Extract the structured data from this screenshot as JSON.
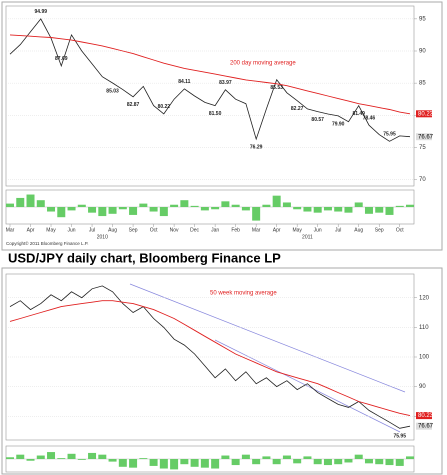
{
  "caption": "USD/JPY daily chart, Bloomberg Finance LP",
  "copyright": "Copyright© 2011 Bloomberg Finance L.P.",
  "chart_data": [
    {
      "type": "line",
      "grid": true,
      "x": [
        0,
        1,
        2,
        3,
        4,
        5,
        6,
        7,
        8,
        9,
        10,
        11,
        12,
        13,
        14,
        15,
        16,
        17,
        18,
        19,
        20,
        21,
        22,
        23,
        24,
        25,
        26,
        27,
        28,
        29,
        30,
        31,
        32,
        33,
        34,
        35,
        36,
        37,
        38,
        39
      ],
      "xlim": [
        0,
        39
      ],
      "xticks": [
        {
          "value": 0,
          "label": "Mar"
        },
        {
          "value": 2,
          "label": "Apr"
        },
        {
          "value": 4,
          "label": "May"
        },
        {
          "value": 6,
          "label": "Jun"
        },
        {
          "value": 8,
          "label": "Jul"
        },
        {
          "value": 10,
          "label": "Aug"
        },
        {
          "value": 12,
          "label": "Sep"
        },
        {
          "value": 14,
          "label": "Oct"
        },
        {
          "value": 16,
          "label": "Nov"
        },
        {
          "value": 18,
          "label": "Dec"
        },
        {
          "value": 20,
          "label": "Jan"
        },
        {
          "value": 22,
          "label": "Feb"
        },
        {
          "value": 24,
          "label": "Mar"
        },
        {
          "value": 26,
          "label": "Apr"
        },
        {
          "value": 28,
          "label": "May"
        },
        {
          "value": 30,
          "label": "Jun"
        },
        {
          "value": 32,
          "label": "Jul"
        },
        {
          "value": 34,
          "label": "Aug"
        },
        {
          "value": 36,
          "label": "Sep"
        },
        {
          "value": 38,
          "label": "Oct"
        }
      ],
      "year_ticks": [
        {
          "value": 9,
          "label": "2010"
        },
        {
          "value": 29,
          "label": "2011"
        }
      ],
      "ylim": [
        69,
        97
      ],
      "yticks": [
        70,
        75,
        80,
        85,
        90,
        95
      ],
      "series": [
        {
          "name": "USD/JPY",
          "color": "#222222",
          "values": [
            89.5,
            91,
            93,
            94.99,
            92,
            87.69,
            92.5,
            90,
            88,
            86,
            85.03,
            84,
            82.87,
            84.5,
            81.5,
            80.22,
            82.5,
            84.11,
            83,
            82,
            81.5,
            83.97,
            82.5,
            81.8,
            76.29,
            81,
            85.53,
            83.5,
            82.27,
            81,
            80.57,
            80.2,
            79.9,
            79,
            81.49,
            78.46,
            77,
            75.95,
            76.8,
            76.67
          ],
          "value_labels": [
            null,
            null,
            null,
            "94.99",
            null,
            "87.69",
            null,
            null,
            null,
            null,
            "85.03",
            null,
            "82.87",
            null,
            null,
            "80.22",
            null,
            "84.11",
            null,
            null,
            "81.50",
            "83.97",
            null,
            null,
            "76.29",
            null,
            "85.53",
            null,
            "82.27",
            null,
            "80.57",
            null,
            "79.90",
            null,
            "81.49",
            "78.46",
            null,
            "75.95",
            null,
            "76.67"
          ]
        },
        {
          "name": "200 day moving average",
          "color": "#e02020",
          "values": [
            92.5,
            92.4,
            92.3,
            92.2,
            92.1,
            91.9,
            91.7,
            91.4,
            91.1,
            90.8,
            90.4,
            90.0,
            89.6,
            89.1,
            88.6,
            88.1,
            87.7,
            87.3,
            87.0,
            86.7,
            86.4,
            86.1,
            85.8,
            85.5,
            85.3,
            85.1,
            84.9,
            84.6,
            84.2,
            83.8,
            83.4,
            83.0,
            82.6,
            82.2,
            81.8,
            81.5,
            81.2,
            80.9,
            80.5,
            80.23
          ],
          "value_labels": [
            null,
            null,
            null,
            null,
            null,
            null,
            null,
            null,
            null,
            null,
            null,
            null,
            null,
            null,
            null,
            null,
            null,
            null,
            null,
            null,
            null,
            null,
            null,
            null,
            null,
            null,
            null,
            null,
            null,
            null,
            null,
            null,
            null,
            null,
            null,
            null,
            null,
            null,
            null,
            "80.23"
          ]
        }
      ]
    },
    {
      "type": "bar",
      "color": "#66cc66",
      "ylim": [
        -1.5,
        1.5
      ],
      "x": [
        0,
        1,
        2,
        3,
        4,
        5,
        6,
        7,
        8,
        9,
        10,
        11,
        12,
        13,
        14,
        15,
        16,
        17,
        18,
        19,
        20,
        21,
        22,
        23,
        24,
        25,
        26,
        27,
        28,
        29,
        30,
        31,
        32,
        33,
        34,
        35,
        36,
        37,
        38,
        39
      ],
      "xlim": [
        0,
        39
      ],
      "values": [
        0.3,
        0.8,
        1.1,
        0.6,
        -0.4,
        -0.9,
        -0.3,
        0.2,
        -0.5,
        -0.8,
        -0.6,
        -0.2,
        -0.7,
        0.3,
        -0.4,
        -0.8,
        0.2,
        0.6,
        0.1,
        -0.3,
        -0.2,
        0.5,
        0.2,
        -0.3,
        -1.2,
        0.2,
        1.0,
        0.4,
        -0.2,
        -0.4,
        -0.5,
        -0.3,
        -0.4,
        -0.5,
        0.4,
        -0.6,
        -0.5,
        -0.7,
        0.1,
        0.2
      ]
    },
    {
      "type": "line",
      "grid": true,
      "x": [
        0,
        1,
        2,
        3,
        4,
        5,
        6,
        7,
        8,
        9,
        10,
        11,
        12,
        13,
        14,
        15,
        16,
        17,
        18,
        19,
        20,
        21,
        22,
        23,
        24,
        25,
        26,
        27,
        28,
        29,
        30,
        31,
        32,
        33,
        34,
        35,
        36,
        37,
        38,
        39
      ],
      "xlim": [
        0,
        39
      ],
      "ylim": [
        72,
        128
      ],
      "yticks": [
        80,
        90,
        100,
        110,
        120
      ],
      "series": [
        {
          "name": "USD/JPY",
          "color": "#222222",
          "values": [
            117,
            119,
            116,
            118,
            121,
            119,
            122,
            120,
            123,
            124,
            122,
            118,
            115,
            117,
            113,
            110,
            106,
            104,
            101,
            97,
            93,
            96,
            92,
            95,
            91,
            93,
            90,
            92,
            89,
            91,
            88,
            86,
            84,
            83,
            85,
            82,
            80,
            78,
            75.95,
            76.67
          ],
          "value_labels": [
            null,
            null,
            null,
            null,
            null,
            null,
            null,
            null,
            null,
            null,
            null,
            null,
            null,
            null,
            null,
            null,
            null,
            null,
            null,
            null,
            null,
            null,
            null,
            null,
            null,
            null,
            null,
            null,
            null,
            null,
            null,
            null,
            null,
            null,
            null,
            null,
            null,
            null,
            "75.95",
            "76.67"
          ]
        },
        {
          "name": "50 week moving average",
          "color": "#e02020",
          "values": [
            112,
            113,
            114,
            115,
            116,
            117,
            117.5,
            118,
            118.5,
            119,
            119,
            118.5,
            118,
            117,
            116,
            114.5,
            113,
            111,
            109,
            107,
            105,
            103,
            101,
            99.5,
            98,
            96.5,
            95,
            94,
            93,
            92,
            91,
            89.5,
            88,
            86.5,
            85,
            84,
            83,
            82,
            81,
            80.23
          ],
          "value_labels": [
            null,
            null,
            null,
            null,
            null,
            null,
            null,
            null,
            null,
            null,
            null,
            null,
            null,
            null,
            null,
            null,
            null,
            null,
            null,
            null,
            null,
            null,
            null,
            null,
            null,
            null,
            null,
            null,
            null,
            null,
            null,
            null,
            null,
            null,
            null,
            null,
            null,
            null,
            null,
            "80.23"
          ]
        }
      ]
    },
    {
      "type": "bar",
      "color": "#66cc66",
      "ylim": [
        -1.5,
        1.5
      ],
      "x": [
        0,
        1,
        2,
        3,
        4,
        5,
        6,
        7,
        8,
        9,
        10,
        11,
        12,
        13,
        14,
        15,
        16,
        17,
        18,
        19,
        20,
        21,
        22,
        23,
        24,
        25,
        26,
        27,
        28,
        29,
        30,
        31,
        32,
        33,
        34,
        35,
        36,
        37,
        38,
        39
      ],
      "xlim": [
        0,
        39
      ],
      "values": [
        0.2,
        0.5,
        -0.2,
        0.4,
        0.8,
        0.1,
        0.6,
        -0.1,
        0.7,
        0.5,
        -0.3,
        -0.9,
        -1.0,
        0.1,
        -0.8,
        -1.1,
        -1.2,
        -0.6,
        -0.9,
        -1.0,
        -1.1,
        0.4,
        -0.7,
        0.5,
        -0.6,
        0.3,
        -0.6,
        0.4,
        -0.5,
        0.3,
        -0.6,
        -0.7,
        -0.6,
        -0.4,
        0.5,
        -0.5,
        -0.6,
        -0.7,
        -0.8,
        0.3
      ]
    }
  ]
}
